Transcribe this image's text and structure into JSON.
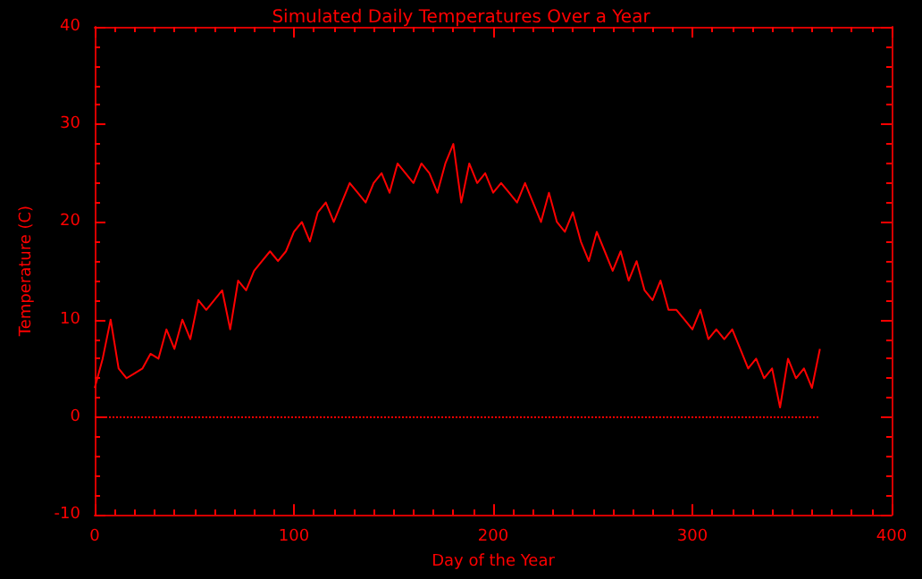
{
  "chart_data": {
    "type": "line",
    "title": "Simulated Daily Temperatures Over a Year",
    "xlabel": "Day of the Year",
    "ylabel": "Temperature (C)",
    "x": [
      0,
      4,
      8,
      12,
      16,
      20,
      24,
      28,
      32,
      36,
      40,
      44,
      48,
      52,
      56,
      60,
      64,
      68,
      72,
      76,
      80,
      84,
      88,
      92,
      96,
      100,
      104,
      108,
      112,
      116,
      120,
      124,
      128,
      132,
      136,
      140,
      144,
      148,
      152,
      156,
      160,
      164,
      168,
      172,
      176,
      180,
      184,
      188,
      192,
      196,
      200,
      204,
      208,
      212,
      216,
      220,
      224,
      228,
      232,
      236,
      240,
      244,
      248,
      252,
      256,
      260,
      264,
      268,
      272,
      276,
      280,
      284,
      288,
      292,
      296,
      300,
      304,
      308,
      312,
      316,
      320,
      324,
      328,
      332,
      336,
      340,
      344,
      348,
      352,
      356,
      360,
      364
    ],
    "series": [
      {
        "color": "#ff0000",
        "values": [
          3,
          6,
          10,
          5,
          4,
          4.5,
          5,
          6.5,
          6,
          9,
          7,
          10,
          8,
          12,
          11,
          12,
          13,
          9,
          14,
          13,
          15,
          16,
          17,
          16,
          17,
          19,
          20,
          18,
          21,
          22,
          20,
          22,
          24,
          23,
          22,
          24,
          25,
          23,
          26,
          25,
          24,
          26,
          25,
          23,
          26,
          28,
          22,
          26,
          24,
          25,
          23,
          24,
          23,
          22,
          24,
          22,
          20,
          23,
          20,
          19,
          21,
          18,
          16,
          19,
          17,
          15,
          17,
          14,
          16,
          13,
          12,
          14,
          11,
          11,
          10,
          9,
          11,
          8,
          9,
          8,
          9,
          7,
          5,
          6,
          4,
          5,
          1,
          6,
          4,
          5,
          3,
          7
        ]
      }
    ],
    "xlim": [
      0,
      400
    ],
    "xticks": [
      0,
      100,
      200,
      300,
      400
    ],
    "ylim": [
      -10,
      40
    ],
    "yticks": [
      -10,
      0,
      10,
      20,
      30,
      40
    ],
    "ref_lines": [
      {
        "axis": "y",
        "value": 0,
        "color": "#ff0000",
        "line_style": "dotted"
      }
    ],
    "grid": false,
    "marker": "none",
    "line_style": "solid"
  }
}
